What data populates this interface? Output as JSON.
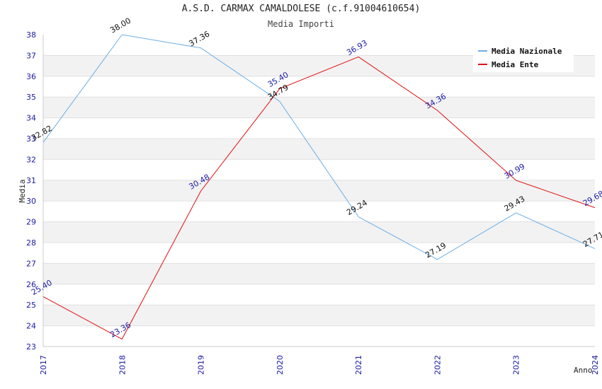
{
  "title": "A.S.D. CARMAX CAMALDOLESE (c.f.91004610654)",
  "subtitle": "Media Importi",
  "chart_data": {
    "type": "line",
    "title": "A.S.D. CARMAX CAMALDOLESE (c.f.91004610654)",
    "subtitle": "Media Importi",
    "xlabel": "Anno",
    "ylabel": "Media",
    "x": [
      "2017",
      "2018",
      "2019",
      "2020",
      "2021",
      "2022",
      "2023",
      "2024"
    ],
    "ylim": [
      23,
      38
    ],
    "yticks": [
      "23",
      "24",
      "25",
      "26",
      "27",
      "28",
      "29",
      "30",
      "31",
      "32",
      "33",
      "34",
      "35",
      "36",
      "37",
      "38"
    ],
    "grid": "horizontal alternating bands",
    "legend_position": "top-right",
    "series": [
      {
        "name": "Media Nazionale",
        "color": "#6aaee6",
        "label_color": "#111111",
        "values": [
          32.82,
          38.0,
          37.36,
          34.79,
          29.24,
          27.19,
          29.43,
          27.71
        ],
        "labels": [
          "32.82",
          "38.00",
          "37.36",
          "34.79",
          "29.24",
          "27.19",
          "29.43",
          "27.71"
        ]
      },
      {
        "name": "Media Ente",
        "color": "#e01010",
        "label_color": "#1a1aa6",
        "values": [
          25.4,
          23.36,
          30.48,
          35.4,
          36.93,
          34.36,
          30.99,
          29.68
        ],
        "labels": [
          "25.40",
          "23.36",
          "30.48",
          "35.40",
          "36.93",
          "34.36",
          "30.99",
          "29.68"
        ]
      }
    ]
  }
}
